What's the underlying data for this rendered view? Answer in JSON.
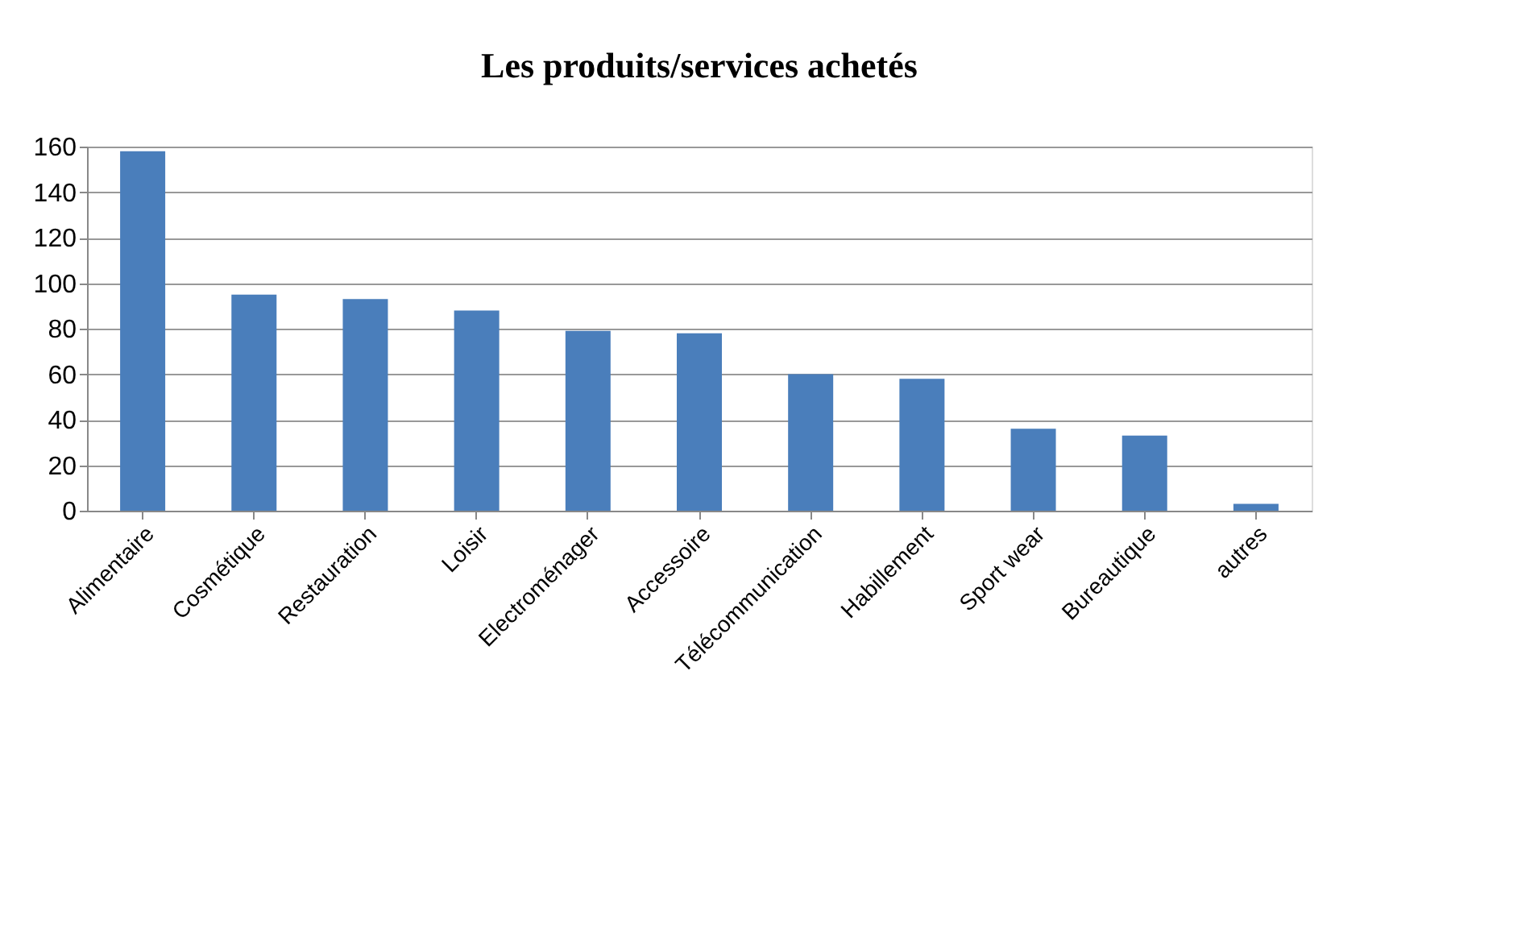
{
  "chart_data": {
    "type": "bar",
    "title": "Les produits/services achetés",
    "categories": [
      "Alimentaire",
      "Cosmétique",
      "Restauration",
      "Loisir",
      "Electroménager",
      "Accessoire",
      "Télécommunication",
      "Habillement",
      "Sport wear",
      "Bureautique",
      "autres"
    ],
    "values": [
      158,
      95,
      93,
      88,
      79,
      78,
      60,
      58,
      36,
      33,
      3
    ],
    "color": "#4a7ebb",
    "ylim": [
      0,
      160
    ],
    "yticks": [
      0,
      20,
      40,
      60,
      80,
      100,
      120,
      140,
      160
    ],
    "grid": "y"
  }
}
